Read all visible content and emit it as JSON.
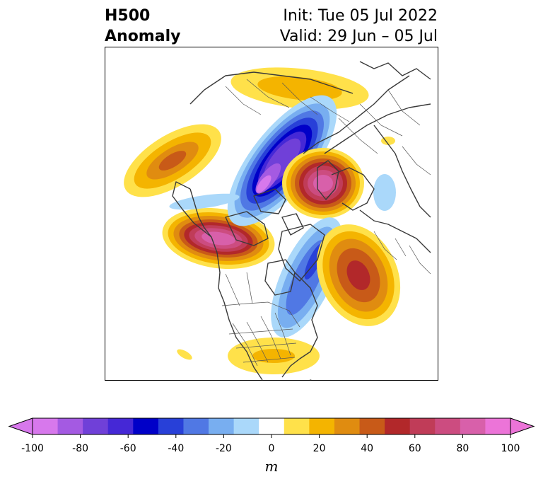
{
  "title": {
    "left_line1": "H500",
    "left_line2": "Anomaly",
    "right_line1": "Init: Tue 05 Jul 2022",
    "right_line2": "Valid: 29 Jun – 05 Jul"
  },
  "colorbar": {
    "unit": "m",
    "ticks": [
      "-100",
      "-80",
      "-60",
      "-40",
      "-20",
      "0",
      "20",
      "40",
      "60",
      "80",
      "100"
    ],
    "bins": [
      "#d778ec",
      "#a45ae2",
      "#7040d8",
      "#4528d6",
      "#0000c8",
      "#2840d8",
      "#5078e4",
      "#78aef0",
      "#aad8fa",
      "#ffffff",
      "#ffe14a",
      "#f4b400",
      "#e08c10",
      "#c85a18",
      "#b2282a",
      "#c03c58",
      "#cc4c80",
      "#d860aa",
      "#ec74d8"
    ],
    "extend_low_color": "#d778ec",
    "extend_high_color": "#ec74d8"
  },
  "map": {
    "projection": "polar stereographic, North Pole centered",
    "anomalies": [
      {
        "name": "alaska-bering-ridge",
        "sign": "positive",
        "peak_m": 80
      },
      {
        "name": "siberia-ridge",
        "sign": "positive",
        "peak_m": 30
      },
      {
        "name": "north-pacific-ridge",
        "sign": "positive",
        "peak_m": 40
      },
      {
        "name": "arctic-trough",
        "sign": "negative",
        "peak_m": -90
      },
      {
        "name": "scandinavia-ridge",
        "sign": "positive",
        "peak_m": 80
      },
      {
        "name": "canada-trough",
        "sign": "negative",
        "peak_m": -40
      },
      {
        "name": "atlantic-ridge",
        "sign": "positive",
        "peak_m": 60
      },
      {
        "name": "southeast-us-ridge",
        "sign": "positive",
        "peak_m": 20
      }
    ]
  }
}
